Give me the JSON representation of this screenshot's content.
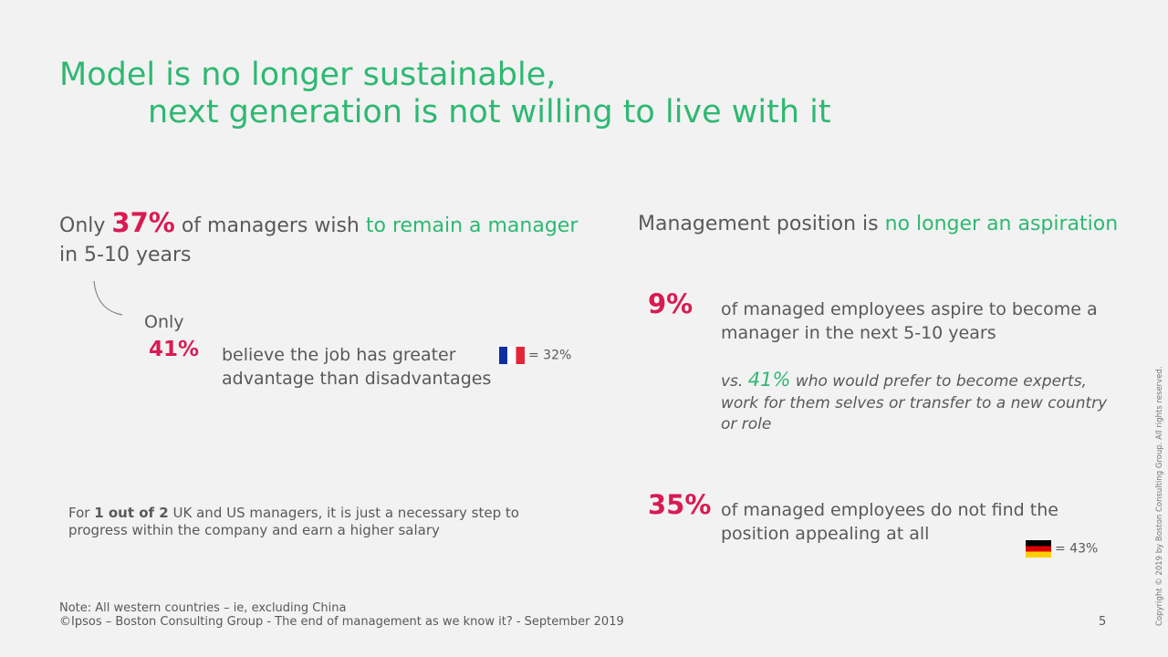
{
  "title": {
    "lines": [
      "Model is no longer sustainable,",
      "next generation is not willing to live with it"
    ]
  },
  "left": {
    "headline": {
      "lead": "Only",
      "percent": "37%",
      "middle": "of managers wish",
      "highlight": "to remain a manager",
      "tail": "in 5-10 years"
    },
    "sub": {
      "lead": "Only",
      "percent": "41%",
      "text": "believe the job has greater advantage than disadvantages",
      "france_note": "= 32%"
    },
    "note": {
      "lead": "For",
      "bold": "1 out of 2",
      "text": "UK and US managers, it is just a necessary step to progress within the company and earn a higher salary"
    }
  },
  "right": {
    "headline": {
      "text": "Management position is",
      "highlight": "no longer an aspiration"
    },
    "stat1": {
      "percent": "9%",
      "text": "of managed employees aspire to become a manager in the next 5-10 years",
      "vs": {
        "lead": "vs.",
        "percent": "41%",
        "text": "who would prefer to become experts, work for them selves or transfer to a new country or role"
      }
    },
    "stat2": {
      "percent": "35%",
      "text": "of managed employees do not find the position appealing at all",
      "germany_note": "= 43%"
    }
  },
  "footer": {
    "note": "Note: All western countries – ie, excluding China",
    "source": "©Ipsos – Boston Consulting Group - The end of management as we know it? - September 2019",
    "page": "5",
    "copyright": "Copyright © 2019 by Boston Consulting Group. All rights reserved."
  }
}
